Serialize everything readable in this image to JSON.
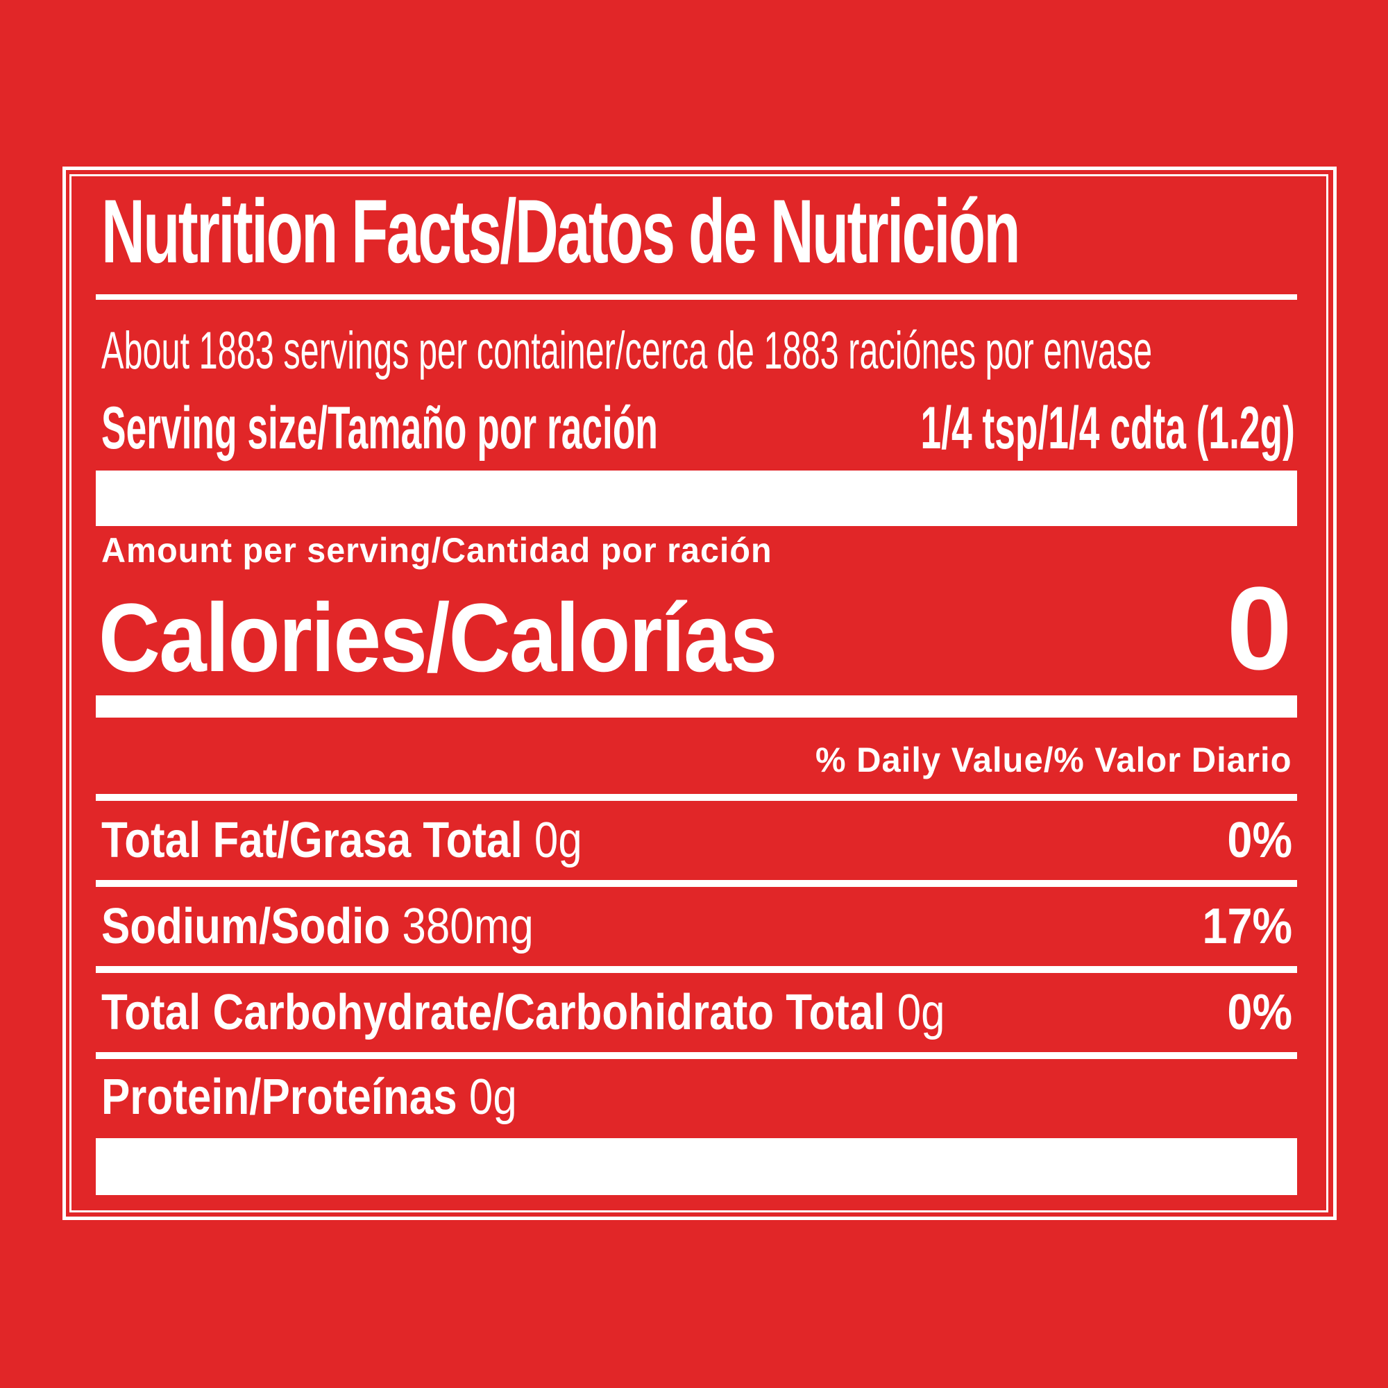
{
  "title": "Nutrition Facts/Datos de Nutrición",
  "servings_per_container": "About 1883 servings per container/cerca de 1883 raciónes por envase",
  "serving_size": {
    "label": "Serving size/Tamaño por ración",
    "value": "1/4 tsp/1/4 cdta (1.2g)"
  },
  "amount_per_serving": "Amount per serving/Cantidad por ración",
  "calories": {
    "label": "Calories/Calorías",
    "value": "0"
  },
  "daily_value_header": "% Daily Value/% Valor Diario",
  "nutrients": [
    {
      "name": "Total Fat/Grasa Total",
      "amount": "0g",
      "dv": "0%"
    },
    {
      "name": "Sodium/Sodio",
      "amount": "380mg",
      "dv": "17%"
    },
    {
      "name": "Total Carbohydrate/Carbohidrato Total",
      "amount": "0g",
      "dv": "0%"
    },
    {
      "name": "Protein/Proteínas",
      "amount": "0g",
      "dv": ""
    }
  ],
  "colors": {
    "background": "#e12628",
    "text": "#ffffff"
  }
}
